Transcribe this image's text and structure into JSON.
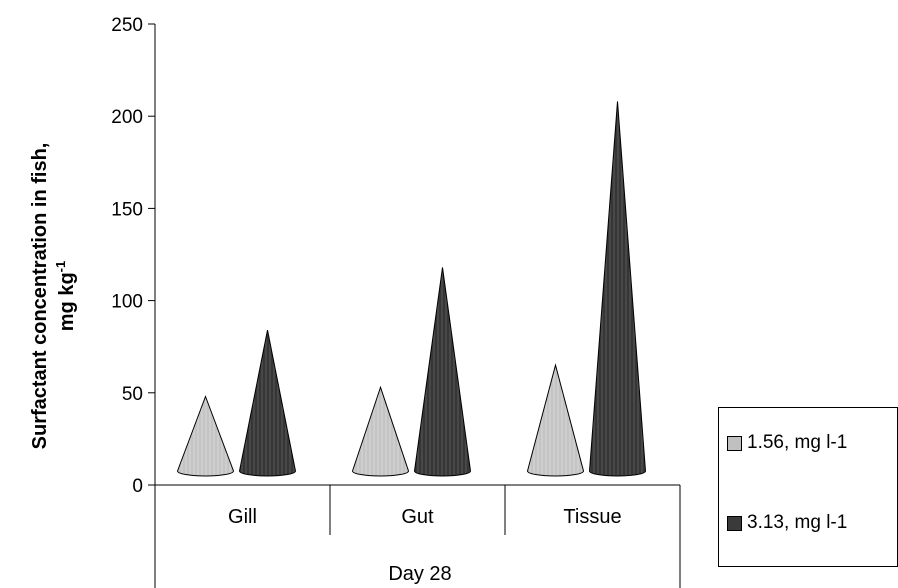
{
  "chart_data": {
    "type": "bar",
    "bar_shape": "cone",
    "categories": [
      "Gill",
      "Gut",
      "Tissue"
    ],
    "group_label": "Day 28",
    "series": [
      {
        "name": "1.56, mg l-1",
        "values": [
          48,
          53,
          65
        ],
        "color": "#c0c0c0"
      },
      {
        "name": "3.13, mg l-1",
        "values": [
          84,
          118,
          208
        ],
        "color": "#3a3a3a"
      }
    ],
    "ylabel_line1": "Surfactant concentration in fish,",
    "ylabel_line2": "mg kg",
    "ylabel_superscript": "-1",
    "ylim": [
      0,
      250
    ],
    "yticks": [
      0,
      50,
      100,
      150,
      200,
      250
    ],
    "grid": false,
    "legend_position": "right"
  }
}
